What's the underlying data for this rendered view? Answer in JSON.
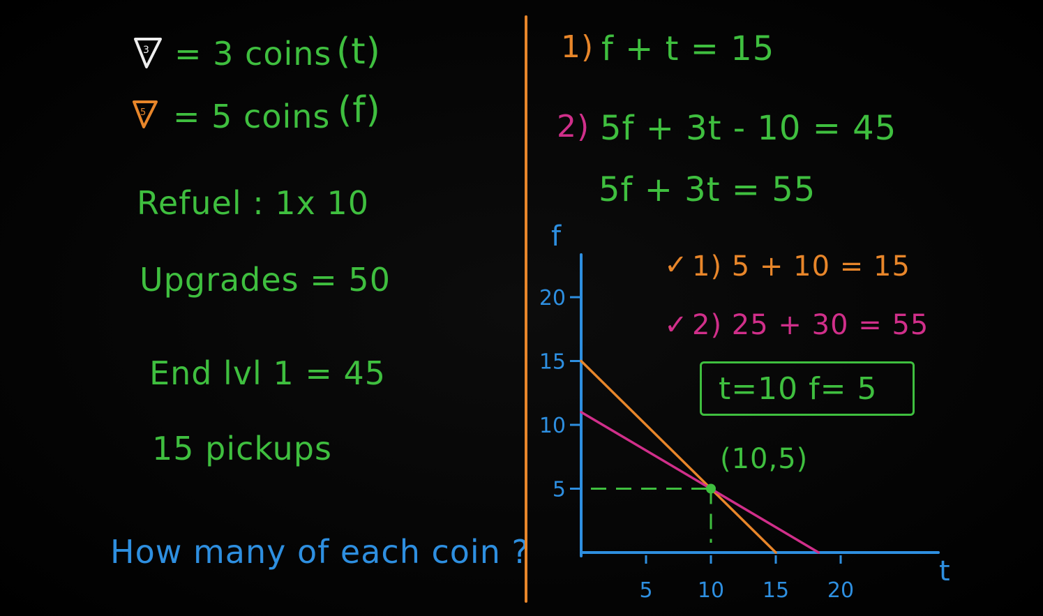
{
  "left_panel": {
    "coin_three": {
      "symbol": "3",
      "text": "= 3 coins",
      "variable": "(t)"
    },
    "coin_five": {
      "symbol": "5",
      "text": "= 5 coins",
      "variable": "(f)"
    },
    "refuel": "Refuel : 1x 10",
    "upgrades": "Upgrades = 50",
    "end_level": "End lvl 1 = 45",
    "pickups": "15 pickups",
    "question": "How many of each coin ?"
  },
  "right_panel": {
    "eq1_num": "1)",
    "eq1": "f + t = 15",
    "eq2_num": "2)",
    "eq2": "5f + 3t - 10 = 45",
    "eq2_simplified": "5f + 3t = 55",
    "check1_mark": "✓",
    "check1": "1) 5 + 10 = 15",
    "check2_mark": "✓",
    "check2": "2) 25 + 30 = 55",
    "solution": "t=10   f= 5",
    "intersection_label": "(10,5)"
  },
  "chart_data": {
    "type": "line",
    "xlabel": "t",
    "ylabel": "f",
    "xlim": [
      0,
      25
    ],
    "ylim": [
      0,
      23
    ],
    "x_ticks": [
      5,
      10,
      15,
      20
    ],
    "y_ticks": [
      5,
      10,
      15,
      20
    ],
    "series": [
      {
        "name": "f + t = 15",
        "color": "#e8862a",
        "points": [
          [
            0,
            15
          ],
          [
            15,
            0
          ]
        ]
      },
      {
        "name": "5f + 3t = 55",
        "color": "#d02f8a",
        "points": [
          [
            0,
            11
          ],
          [
            18.3,
            0
          ]
        ]
      }
    ],
    "intersection": {
      "x": 10,
      "y": 5,
      "label": "(10,5)",
      "color": "#3fbf3f"
    }
  },
  "colors": {
    "green": "#3fbf3f",
    "orange": "#e8862a",
    "blue": "#2e8fe0",
    "pink": "#d02f8a",
    "white": "#eeeeee"
  }
}
